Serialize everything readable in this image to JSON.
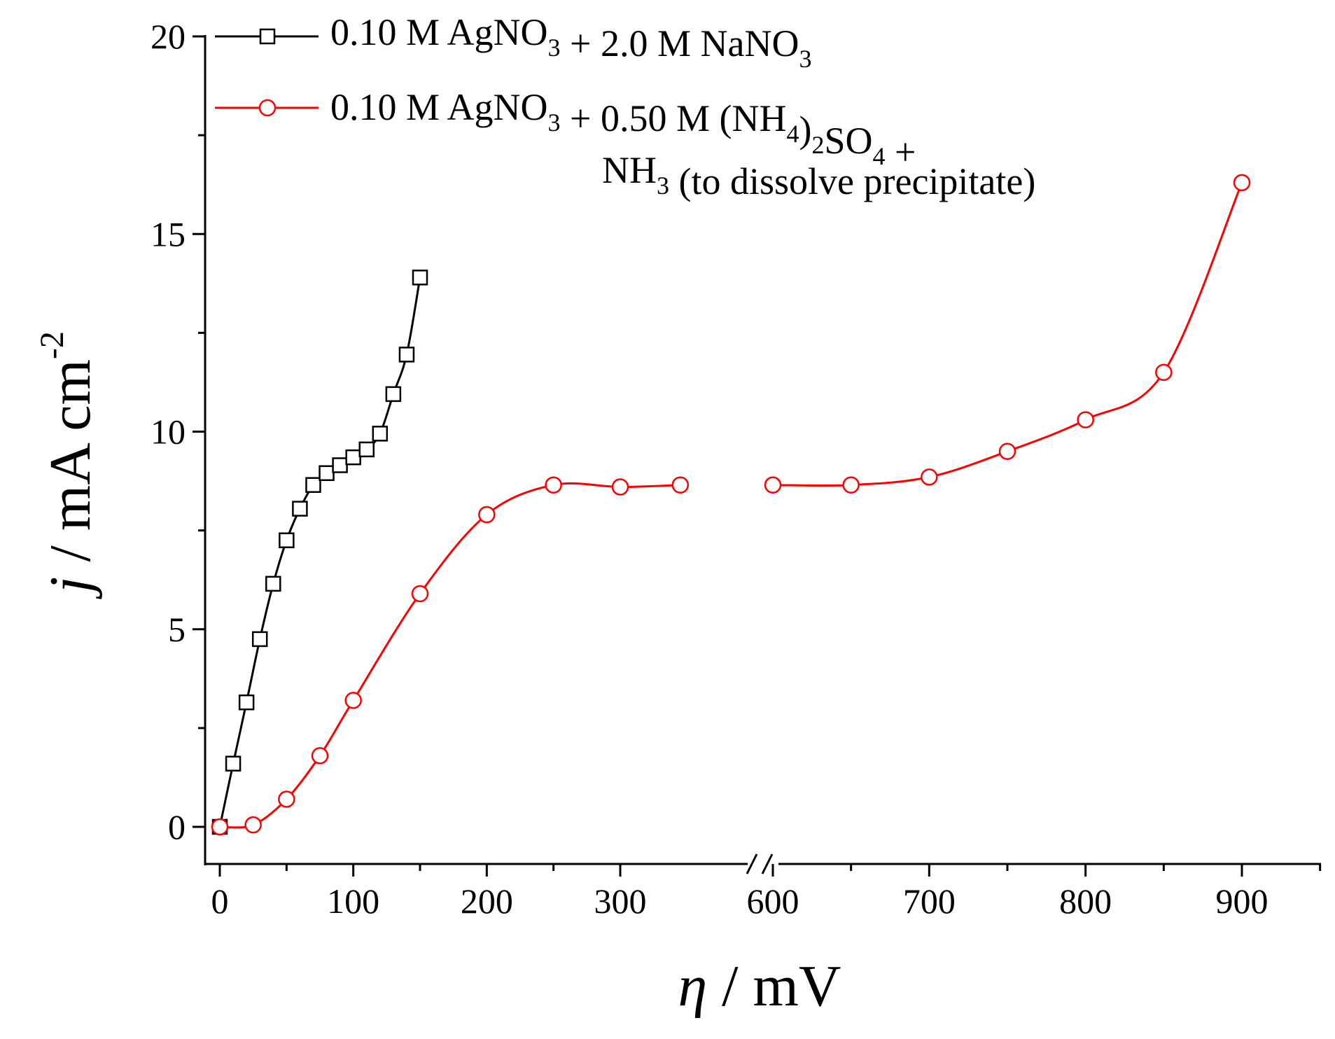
{
  "chart_data": {
    "type": "line",
    "title": "",
    "xlabel": {
      "symbol": "η",
      "unit": " / mV"
    },
    "ylabel": {
      "symbol": "j",
      "unit": " / mA cm",
      "exponent": "-2"
    },
    "ylim": [
      -2,
      20
    ],
    "yticks": [
      0,
      5,
      10,
      15,
      20
    ],
    "x_axis_break": {
      "left_range": [
        -10,
        350
      ],
      "right_range": [
        600,
        950
      ]
    },
    "xticks": [
      0,
      100,
      200,
      300,
      600,
      700,
      800,
      900
    ],
    "series": [
      {
        "name": "0.10 M AgNO3 + 2.0 M NaNO3",
        "color": "#000000",
        "marker": "square",
        "x": [
          0,
          10,
          20,
          30,
          40,
          50,
          60,
          70,
          80,
          90,
          100,
          110,
          120,
          130,
          140,
          150
        ],
        "y": [
          0,
          1.6,
          3.15,
          4.75,
          6.15,
          7.25,
          8.05,
          8.65,
          8.95,
          9.15,
          9.35,
          9.55,
          9.95,
          10.95,
          11.95,
          13.9
        ]
      },
      {
        "name": "0.10 M AgNO3 + 0.50 M (NH4)2SO4 + NH3 (to dissolve precipitate)",
        "color": "#ff0000",
        "marker": "circle",
        "x": [
          0,
          25,
          50,
          75,
          100,
          150,
          200,
          250,
          300,
          345,
          600,
          650,
          700,
          750,
          800,
          850,
          900
        ],
        "y": [
          0,
          0.05,
          0.7,
          1.8,
          3.2,
          5.9,
          7.9,
          8.65,
          8.6,
          8.65,
          8.65,
          8.65,
          8.85,
          9.5,
          10.3,
          11.5,
          16.3
        ]
      }
    ],
    "legend": {
      "position": "top",
      "entries": [
        {
          "parts": [
            {
              "t": "0.10 M AgNO"
            },
            {
              "sub": "3"
            },
            {
              "t": " + 2.0 M NaNO"
            },
            {
              "sub": "3"
            }
          ]
        },
        {
          "parts": [
            {
              "t": "0.10 M AgNO"
            },
            {
              "sub": "3"
            },
            {
              "t": " + 0.50 M (NH"
            },
            {
              "sub": "4"
            },
            {
              "t": ")"
            },
            {
              "sub": "2"
            },
            {
              "t": "SO"
            },
            {
              "sub": "4"
            },
            {
              "t": " +"
            }
          ]
        },
        {
          "parts": [
            {
              "t": "NH"
            },
            {
              "sub": "3"
            },
            {
              "t": " (to dissolve precipitate)"
            }
          ]
        }
      ]
    }
  }
}
